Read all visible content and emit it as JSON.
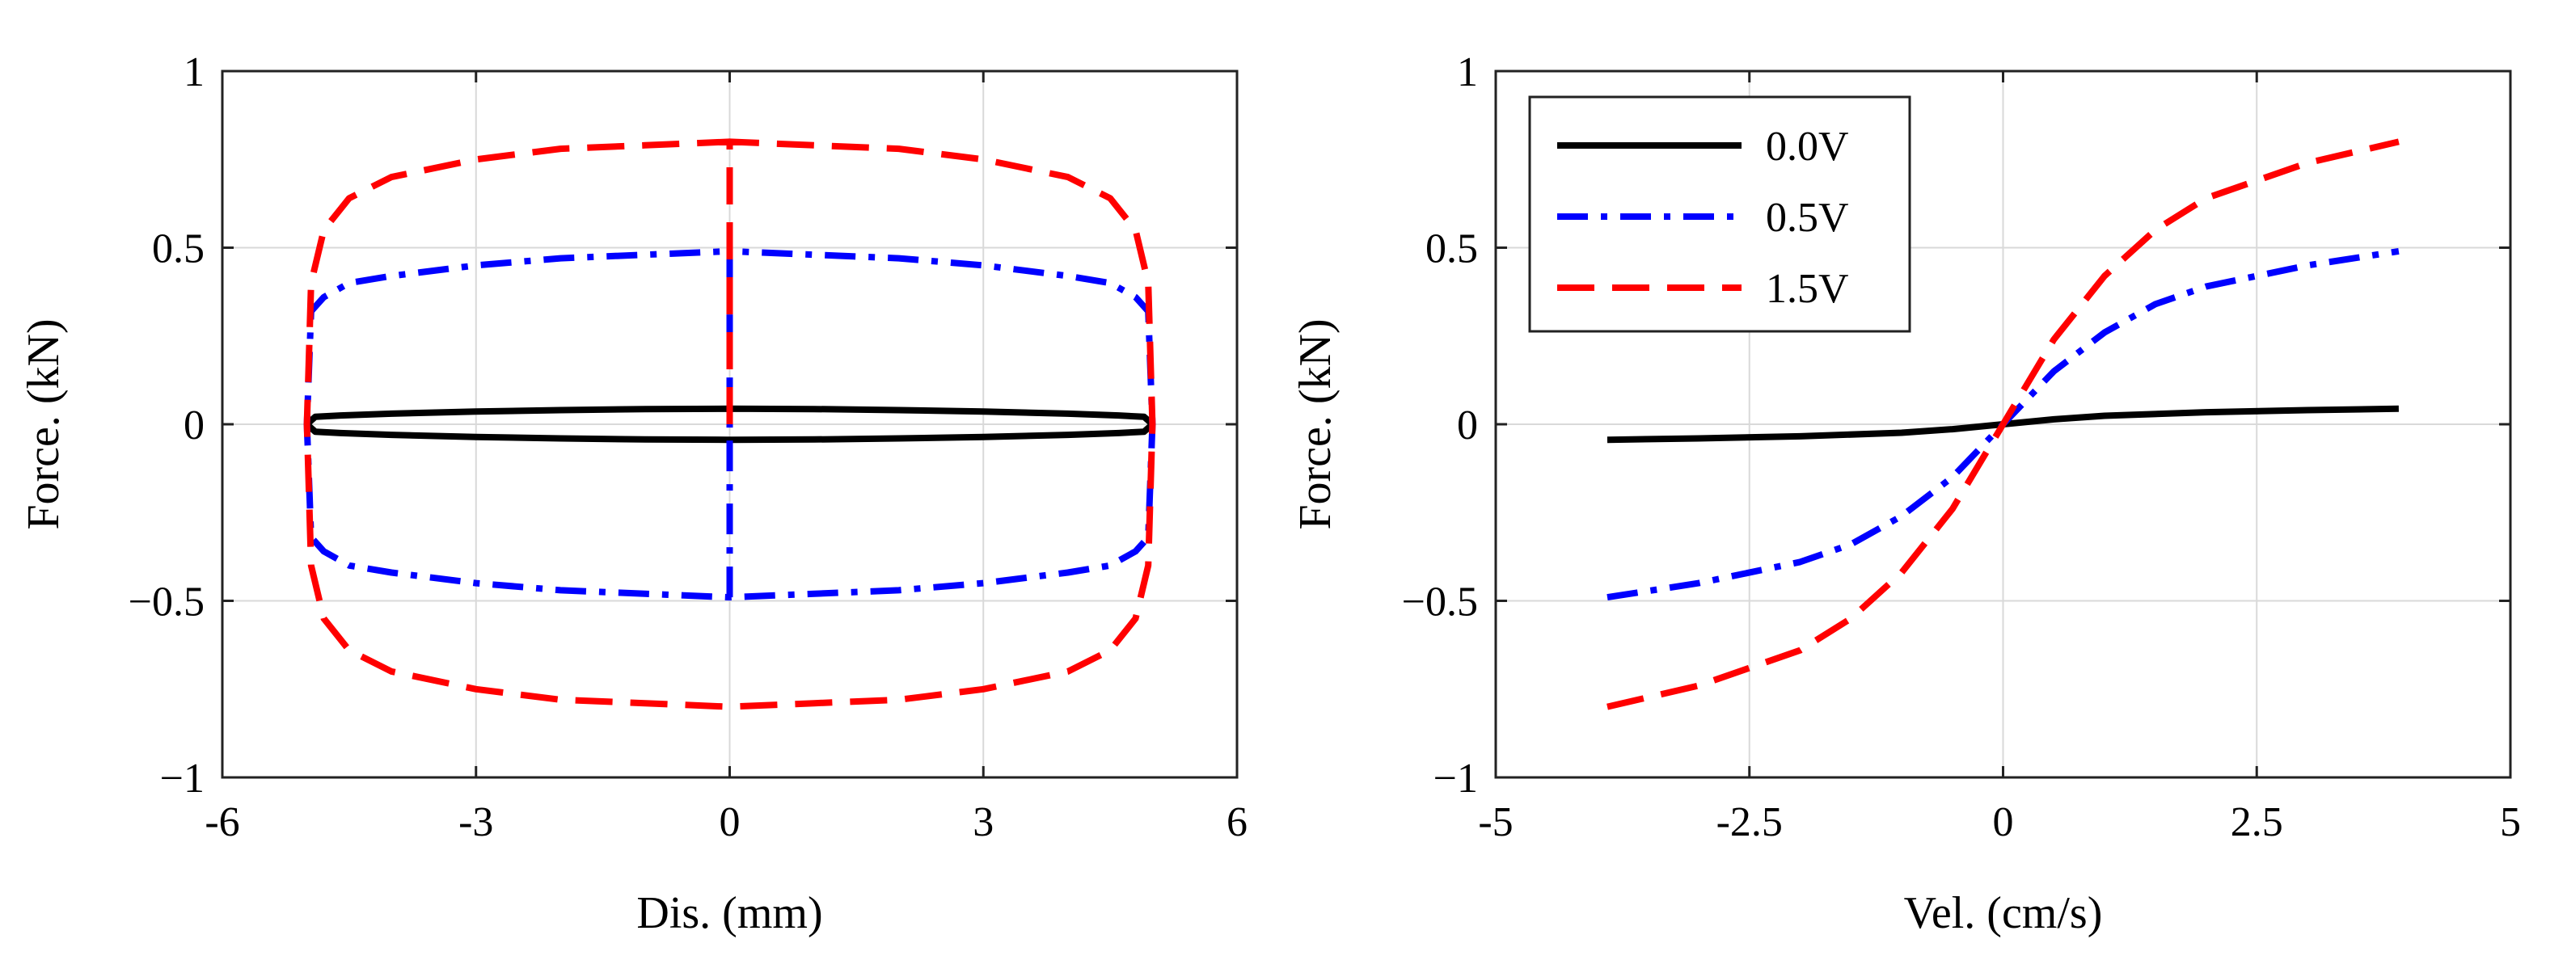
{
  "chart_data": [
    {
      "type": "line",
      "title": "",
      "xlabel": "Dis. (mm)",
      "ylabel": "Force. (kN)",
      "xlim": [
        -6,
        6
      ],
      "ylim": [
        -1,
        1
      ],
      "xticks": [
        -6,
        -3,
        0,
        3,
        6
      ],
      "xtick_labels": [
        "-6",
        "-3",
        "0",
        "3",
        "6"
      ],
      "yticks": [
        -1,
        -0.5,
        0,
        0.5,
        1
      ],
      "ytick_labels": [
        "−1",
        "−0.5",
        "0",
        "0.5",
        "1"
      ],
      "grid": true,
      "series": [
        {
          "name": "0.0V",
          "color": "#000000",
          "dash": "solid",
          "x": [
            0,
            1,
            2,
            3,
            4,
            4.6,
            4.9,
            5.0,
            4.9,
            4.6,
            4,
            3,
            2,
            1,
            0,
            -1,
            -2,
            -3,
            -4,
            -4.6,
            -4.9,
            -5.0,
            -4.9,
            -4.6,
            -4,
            -3,
            -2,
            -1,
            0
          ],
          "y": [
            0.044,
            0.043,
            0.04,
            0.036,
            0.03,
            0.025,
            0.021,
            0.0,
            -0.021,
            -0.025,
            -0.03,
            -0.036,
            -0.04,
            -0.043,
            -0.044,
            -0.043,
            -0.04,
            -0.036,
            -0.03,
            -0.025,
            -0.021,
            0.0,
            0.021,
            0.025,
            0.03,
            0.036,
            0.04,
            0.043,
            0.044
          ]
        },
        {
          "name": "0.5V",
          "color": "#0000ff",
          "dash": "dashdot",
          "x": [
            0,
            0,
            1,
            2,
            3,
            4,
            4.5,
            4.8,
            4.95,
            5.0,
            4.95,
            4.8,
            4.5,
            4,
            3,
            2,
            1,
            0,
            -1,
            -2,
            -3,
            -4,
            -4.5,
            -4.8,
            -4.95,
            -5.0,
            -4.95,
            -4.8,
            -4.5,
            -4,
            -3,
            -2,
            -1,
            0
          ],
          "y": [
            -0.49,
            0.49,
            0.48,
            0.47,
            0.45,
            0.42,
            0.4,
            0.36,
            0.32,
            0.0,
            -0.32,
            -0.36,
            -0.4,
            -0.42,
            -0.45,
            -0.47,
            -0.48,
            -0.49,
            -0.48,
            -0.47,
            -0.45,
            -0.42,
            -0.4,
            -0.36,
            -0.32,
            0.0,
            0.32,
            0.36,
            0.4,
            0.42,
            0.45,
            0.47,
            0.48,
            0.49
          ]
        },
        {
          "name": "1.5V",
          "color": "#ff0000",
          "dash": "dashed",
          "x": [
            0,
            0,
            1,
            2,
            3,
            4,
            4.5,
            4.8,
            4.95,
            5.0,
            4.95,
            4.8,
            4.5,
            4,
            3,
            2,
            1,
            0,
            -1,
            -2,
            -3,
            -4,
            -4.5,
            -4.8,
            -4.95,
            -5.0,
            -4.95,
            -4.8,
            -4.5,
            -4,
            -3,
            -2,
            -1,
            0
          ],
          "y": [
            0.0,
            0.8,
            0.79,
            0.78,
            0.75,
            0.7,
            0.64,
            0.55,
            0.4,
            0.0,
            -0.4,
            -0.55,
            -0.64,
            -0.7,
            -0.75,
            -0.78,
            -0.79,
            -0.8,
            -0.79,
            -0.78,
            -0.75,
            -0.7,
            -0.64,
            -0.55,
            -0.4,
            0.0,
            0.4,
            0.55,
            0.64,
            0.7,
            0.75,
            0.78,
            0.79,
            0.8
          ]
        }
      ]
    },
    {
      "type": "line",
      "title": "",
      "xlabel": "Vel. (cm/s)",
      "ylabel": "Force. (kN)",
      "xlim": [
        -5,
        5
      ],
      "ylim": [
        -1,
        1
      ],
      "xticks": [
        -5,
        -2.5,
        0,
        2.5,
        5
      ],
      "xtick_labels": [
        "-5",
        "-2.5",
        "0",
        "2.5",
        "5"
      ],
      "yticks": [
        -1,
        -0.5,
        0,
        0.5,
        1
      ],
      "ytick_labels": [
        "−1",
        "−0.5",
        "0",
        "0.5",
        "1"
      ],
      "grid": true,
      "legend": {
        "position": "top-left",
        "entries": [
          "0.0V",
          "0.5V",
          "1.5V"
        ]
      },
      "series": [
        {
          "name": "0.0V",
          "color": "#000000",
          "dash": "solid",
          "x": [
            -3.9,
            -3,
            -2,
            -1,
            -0.5,
            0,
            0.5,
            1,
            2,
            3,
            3.9
          ],
          "y": [
            -0.044,
            -0.04,
            -0.034,
            -0.024,
            -0.014,
            0.0,
            0.014,
            0.024,
            0.034,
            0.04,
            0.044
          ]
        },
        {
          "name": "0.5V",
          "color": "#0000ff",
          "dash": "dashdot",
          "x": [
            -3.9,
            -3,
            -2,
            -1.5,
            -1,
            -0.5,
            0,
            0.5,
            1,
            1.5,
            2,
            3,
            3.9
          ],
          "y": [
            -0.49,
            -0.45,
            -0.39,
            -0.34,
            -0.26,
            -0.15,
            0.0,
            0.15,
            0.26,
            0.34,
            0.39,
            0.45,
            0.49
          ]
        },
        {
          "name": "1.5V",
          "color": "#ff0000",
          "dash": "dashed",
          "x": [
            -3.9,
            -3,
            -2,
            -1.5,
            -1,
            -0.5,
            0,
            0.5,
            1,
            1.5,
            2,
            3,
            3.9
          ],
          "y": [
            -0.8,
            -0.74,
            -0.64,
            -0.55,
            -0.42,
            -0.24,
            0.0,
            0.24,
            0.42,
            0.55,
            0.64,
            0.74,
            0.8
          ]
        }
      ]
    }
  ]
}
